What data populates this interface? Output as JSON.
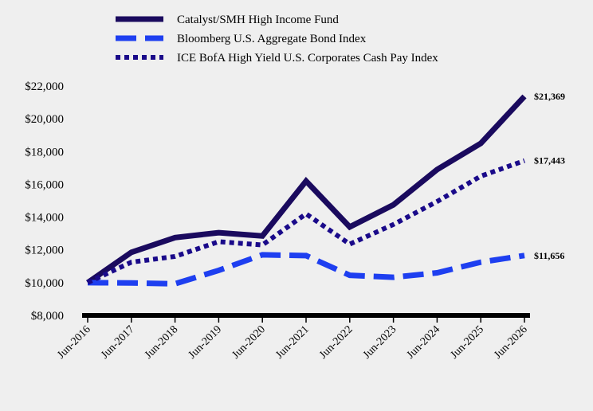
{
  "chart_data": {
    "type": "line",
    "categories": [
      "Jun-2016",
      "Jun-2017",
      "Jun-2018",
      "Jun-2019",
      "Jun-2020",
      "Jun-2021",
      "Jun-2022",
      "Jun-2023",
      "Jun-2024",
      "Jun-2025",
      "Jun-2026"
    ],
    "series": [
      {
        "name": "Catalyst/SMH High Income Fund",
        "color": "#1a0a5e",
        "style": "solid",
        "values": [
          10000,
          11850,
          12750,
          13050,
          12850,
          16200,
          13400,
          14750,
          16900,
          18500,
          21369
        ],
        "end_label": "$21,369"
      },
      {
        "name": "Bloomberg U.S. Aggregate Bond Index",
        "color": "#1e3ff0",
        "style": "dashed",
        "values": [
          10000,
          9980,
          9930,
          10750,
          11700,
          11650,
          10450,
          10330,
          10600,
          11250,
          11656
        ],
        "end_label": "$11,656"
      },
      {
        "name": "ICE BofA High Yield U.S. Corporates Cash Pay Index",
        "color": "#1a0a8a",
        "style": "dotted",
        "values": [
          10000,
          11250,
          11600,
          12500,
          12300,
          14200,
          12350,
          13550,
          14950,
          16500,
          17443
        ],
        "end_label": "$17,443"
      }
    ],
    "ylim": [
      8000,
      22000
    ],
    "yticks": [
      "$8,000",
      "$10,000",
      "$12,000",
      "$14,000",
      "$16,000",
      "$18,000",
      "$20,000",
      "$22,000"
    ],
    "grid": false,
    "legend_position": "top"
  }
}
